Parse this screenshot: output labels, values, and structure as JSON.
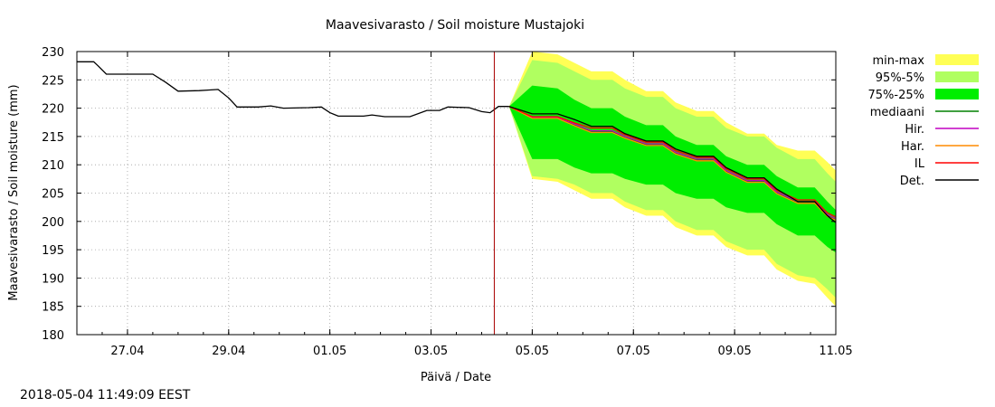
{
  "title": "Maavesivarasto / Soil moisture   Mustajoki",
  "timestamp": "2018-05-04 11:49:09 EEST",
  "chart_data": {
    "type": "line",
    "title": "Maavesivarasto / Soil moisture   Mustajoki",
    "xlabel": "Päivä / Date",
    "ylabel": "Maavesivarasto / Soil moisture (mm)",
    "ylim": [
      180,
      230
    ],
    "yticks": [
      180,
      185,
      190,
      195,
      200,
      205,
      210,
      215,
      220,
      225,
      230
    ],
    "xlim": [
      "2018-04-26",
      "2018-05-11"
    ],
    "xticks": [
      {
        "date": "2018-04-27",
        "label": "27.04"
      },
      {
        "date": "2018-04-29",
        "label": "29.04"
      },
      {
        "date": "2018-05-01",
        "label": "01.05"
      },
      {
        "date": "2018-05-03",
        "label": "03.05"
      },
      {
        "date": "2018-05-05",
        "label": "05.05"
      },
      {
        "date": "2018-05-07",
        "label": "07.05"
      },
      {
        "date": "2018-05-09",
        "label": "09.05"
      },
      {
        "date": "2018-05-11",
        "label": "11.05"
      }
    ],
    "grid": true,
    "legend_position": "right",
    "forecast_start": "2018-05-04 06:00",
    "colors": {
      "minmax": "#ffff55",
      "p95_5": "#b0ff60",
      "p75_25": "#00ee00",
      "median": "#008000",
      "hir": "#c000c0",
      "har": "#ff8c00",
      "il": "#ff0000",
      "det": "#000000",
      "vline": "#aa0000"
    },
    "legend": [
      {
        "label": "min-max",
        "kind": "band",
        "color_key": "minmax"
      },
      {
        "label": "95%-5%",
        "kind": "band",
        "color_key": "p95_5"
      },
      {
        "label": "75%-25%",
        "kind": "band",
        "color_key": "p75_25"
      },
      {
        "label": "mediaani",
        "kind": "line",
        "color_key": "median"
      },
      {
        "label": "Hir.",
        "kind": "line",
        "color_key": "hir"
      },
      {
        "label": "Har.",
        "kind": "line",
        "color_key": "har"
      },
      {
        "label": "IL",
        "kind": "line",
        "color_key": "il"
      },
      {
        "label": "Det.",
        "kind": "line",
        "color_key": "det"
      }
    ],
    "observed": [
      [
        "2018-04-26 00:00",
        228.2
      ],
      [
        "2018-04-26 08:00",
        228.2
      ],
      [
        "2018-04-26 10:00",
        227.5
      ],
      [
        "2018-04-26 14:00",
        226.0
      ],
      [
        "2018-04-27 12:00",
        226.0
      ],
      [
        "2018-04-27 18:00",
        224.6
      ],
      [
        "2018-04-28 00:00",
        223.0
      ],
      [
        "2018-04-28 10:00",
        223.1
      ],
      [
        "2018-04-28 14:00",
        223.2
      ],
      [
        "2018-04-28 19:00",
        223.3
      ],
      [
        "2018-04-29 00:00",
        221.8
      ],
      [
        "2018-04-29 04:00",
        220.2
      ],
      [
        "2018-04-29 14:00",
        220.2
      ],
      [
        "2018-04-29 20:00",
        220.4
      ],
      [
        "2018-04-30 02:00",
        220.0
      ],
      [
        "2018-04-30 14:00",
        220.1
      ],
      [
        "2018-04-30 20:00",
        220.2
      ],
      [
        "2018-05-01 00:00",
        219.2
      ],
      [
        "2018-05-01 04:00",
        218.6
      ],
      [
        "2018-05-01 16:00",
        218.6
      ],
      [
        "2018-05-01 20:00",
        218.8
      ],
      [
        "2018-05-02 02:00",
        218.5
      ],
      [
        "2018-05-02 14:00",
        218.5
      ],
      [
        "2018-05-02 22:00",
        219.6
      ],
      [
        "2018-05-03 04:00",
        219.6
      ],
      [
        "2018-05-03 08:00",
        220.2
      ],
      [
        "2018-05-03 18:00",
        220.1
      ],
      [
        "2018-05-04 00:00",
        219.4
      ],
      [
        "2018-05-04 04:00",
        219.2
      ],
      [
        "2018-05-04 08:00",
        220.3
      ],
      [
        "2018-05-04 13:00",
        220.3
      ]
    ],
    "forecast_times": [
      "2018-05-04 13:00",
      "2018-05-05 00:00",
      "2018-05-05 12:00",
      "2018-05-05 20:00",
      "2018-05-06 04:00",
      "2018-05-06 14:00",
      "2018-05-06 20:00",
      "2018-05-07 06:00",
      "2018-05-07 14:00",
      "2018-05-07 20:00",
      "2018-05-08 06:00",
      "2018-05-08 14:00",
      "2018-05-08 20:00",
      "2018-05-09 06:00",
      "2018-05-09 14:00",
      "2018-05-09 20:00",
      "2018-05-10 06:00",
      "2018-05-10 14:00",
      "2018-05-10 20:00",
      "2018-05-11 00:00"
    ],
    "bands": {
      "min": [
        220.3,
        207.5,
        207.0,
        205.5,
        204.0,
        204.0,
        202.5,
        201.0,
        201.0,
        199.0,
        197.5,
        197.5,
        195.5,
        194.0,
        194.0,
        191.5,
        189.5,
        189.0,
        186.5,
        185.0
      ],
      "p5": [
        220.3,
        208.0,
        207.5,
        206.5,
        205.0,
        205.0,
        203.5,
        202.0,
        202.0,
        200.0,
        198.5,
        198.5,
        196.5,
        195.0,
        195.0,
        192.5,
        190.5,
        190.0,
        188.0,
        186.5
      ],
      "p25": [
        220.3,
        211.0,
        211.0,
        209.5,
        208.5,
        208.5,
        207.5,
        206.5,
        206.5,
        205.0,
        204.0,
        204.0,
        202.5,
        201.5,
        201.5,
        199.5,
        197.5,
        197.5,
        195.5,
        194.5
      ],
      "p75": [
        220.3,
        224.0,
        223.5,
        221.5,
        220.0,
        220.0,
        218.5,
        217.0,
        217.0,
        215.0,
        213.5,
        213.5,
        211.5,
        210.0,
        210.0,
        208.0,
        206.0,
        206.0,
        203.5,
        202.0
      ],
      "p95": [
        220.3,
        228.5,
        228.0,
        226.5,
        225.0,
        225.0,
        223.5,
        222.0,
        222.0,
        220.0,
        218.5,
        218.5,
        216.5,
        215.0,
        215.0,
        213.0,
        211.0,
        211.0,
        208.5,
        207.0
      ],
      "max": [
        220.3,
        230.0,
        229.5,
        228.0,
        226.5,
        226.5,
        225.0,
        223.0,
        223.0,
        221.0,
        219.5,
        219.5,
        217.5,
        215.5,
        215.5,
        213.5,
        212.5,
        212.5,
        210.5,
        209.0
      ]
    },
    "lines": {
      "median": [
        220.3,
        218.3,
        218.3,
        217.0,
        215.8,
        215.8,
        214.8,
        213.5,
        213.5,
        212.0,
        210.8,
        210.8,
        208.8,
        207.0,
        207.0,
        205.0,
        203.3,
        203.3,
        201.0,
        200.3
      ],
      "hir": [
        220.3,
        218.4,
        218.4,
        217.2,
        216.0,
        216.0,
        215.0,
        213.7,
        213.7,
        212.2,
        211.0,
        211.0,
        209.0,
        207.2,
        207.2,
        205.2,
        203.5,
        203.5,
        201.2,
        200.5
      ],
      "har": [
        220.3,
        218.2,
        218.2,
        216.9,
        215.7,
        215.7,
        214.7,
        213.4,
        213.4,
        211.9,
        210.7,
        210.7,
        208.7,
        206.9,
        206.9,
        204.9,
        203.2,
        203.2,
        200.9,
        200.2
      ],
      "il": [
        220.3,
        218.5,
        218.5,
        217.4,
        216.5,
        216.5,
        215.3,
        214.0,
        214.0,
        212.5,
        211.3,
        211.3,
        209.3,
        207.5,
        207.5,
        205.5,
        203.8,
        203.8,
        201.5,
        200.8
      ],
      "det": [
        220.3,
        219.0,
        219.0,
        218.0,
        216.8,
        216.8,
        215.5,
        214.2,
        214.2,
        212.8,
        211.5,
        211.5,
        209.5,
        207.7,
        207.7,
        205.7,
        203.5,
        203.5,
        201.0,
        199.8
      ]
    }
  }
}
